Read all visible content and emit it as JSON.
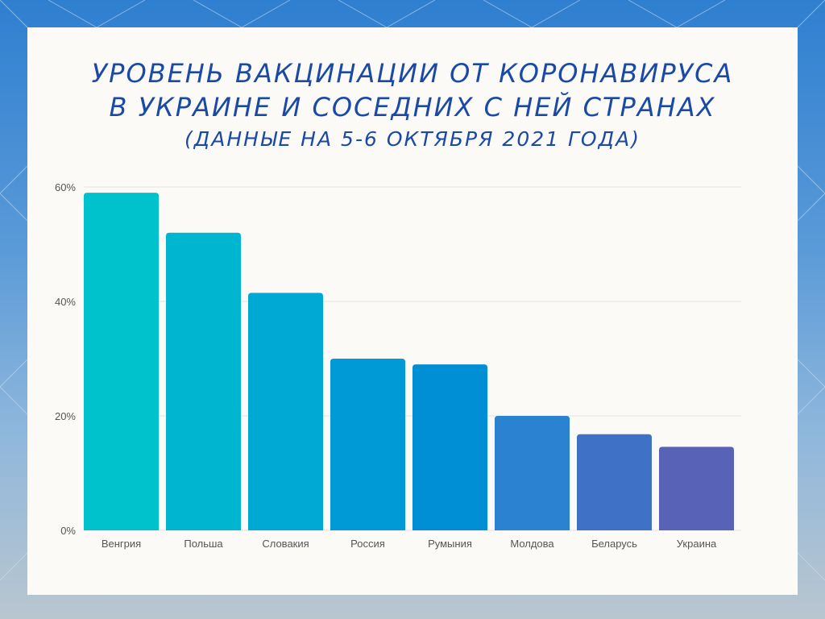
{
  "title": {
    "line1": "УРОВЕНЬ ВАКЦИНАЦИИ ОТ КОРОНАВИРУСА",
    "line2": "В УКРАИНЕ И СОСЕДНИХ С НЕЙ СТРАНАХ",
    "line3": "(ДАННЫЕ НА 5-6 ОКТЯБРЯ 2021 ГОДА)"
  },
  "chart_data": {
    "type": "bar",
    "categories": [
      "Венгрия",
      "Польша",
      "Словакия",
      "Россия",
      "Румыния",
      "Молдова",
      "Беларусь",
      "Украина"
    ],
    "values": [
      59,
      52,
      41.5,
      30,
      29,
      20,
      16.8,
      14.6
    ],
    "ylim": [
      0,
      60
    ],
    "yticks": [
      "0%",
      "20%",
      "40%",
      "60%"
    ],
    "ytick_values": [
      0,
      20,
      40,
      60
    ],
    "grid": true,
    "bar_colors": [
      "#00c2cc",
      "#00b5d0",
      "#00a8d4",
      "#009bd6",
      "#008fd4",
      "#2a82d0",
      "#3f72c6",
      "#5863b8"
    ]
  }
}
